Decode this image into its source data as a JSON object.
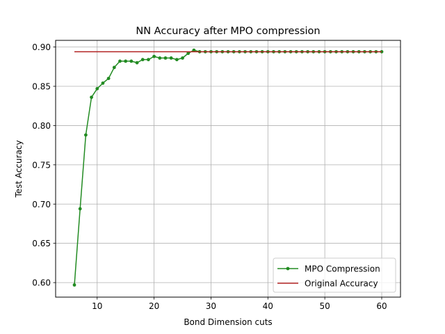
{
  "chart_data": {
    "type": "line",
    "title": "NN Accuracy after MPO compression",
    "xlabel": "Bond Dimension cuts",
    "ylabel": "Test Accuracy",
    "xlim": [
      2.7,
      63.3
    ],
    "ylim": [
      0.5815,
      0.9085
    ],
    "xticks": [
      10,
      20,
      30,
      40,
      50,
      60
    ],
    "xtick_labels": [
      "10",
      "20",
      "30",
      "40",
      "50",
      "60"
    ],
    "yticks": [
      0.6,
      0.65,
      0.7,
      0.75,
      0.8,
      0.85,
      0.9
    ],
    "ytick_labels": [
      "0.60",
      "0.65",
      "0.70",
      "0.75",
      "0.80",
      "0.85",
      "0.90"
    ],
    "grid": true,
    "legend_position": "lower-right",
    "series": [
      {
        "name": "MPO Compression",
        "color": "#228b22",
        "marker": "circle",
        "x": [
          6,
          7,
          8,
          9,
          10,
          11,
          12,
          13,
          14,
          15,
          16,
          17,
          18,
          19,
          20,
          21,
          22,
          23,
          24,
          25,
          26,
          27,
          28,
          29,
          30,
          31,
          32,
          33,
          34,
          35,
          36,
          37,
          38,
          39,
          40,
          41,
          42,
          43,
          44,
          45,
          46,
          47,
          48,
          49,
          50,
          51,
          52,
          53,
          54,
          55,
          56,
          57,
          58,
          59,
          60
        ],
        "y": [
          0.597,
          0.694,
          0.788,
          0.836,
          0.847,
          0.854,
          0.86,
          0.874,
          0.882,
          0.882,
          0.882,
          0.88,
          0.884,
          0.884,
          0.888,
          0.886,
          0.886,
          0.886,
          0.884,
          0.886,
          0.892,
          0.896,
          0.894,
          0.894,
          0.894,
          0.894,
          0.894,
          0.894,
          0.894,
          0.894,
          0.894,
          0.894,
          0.894,
          0.894,
          0.894,
          0.894,
          0.894,
          0.894,
          0.894,
          0.894,
          0.894,
          0.894,
          0.894,
          0.894,
          0.894,
          0.894,
          0.894,
          0.894,
          0.894,
          0.894,
          0.894,
          0.894,
          0.894,
          0.894,
          0.894
        ]
      },
      {
        "name": "Original Accuracy",
        "color": "#b22222",
        "marker": "none",
        "x": [
          6,
          60
        ],
        "y": [
          0.894,
          0.894
        ]
      }
    ]
  }
}
